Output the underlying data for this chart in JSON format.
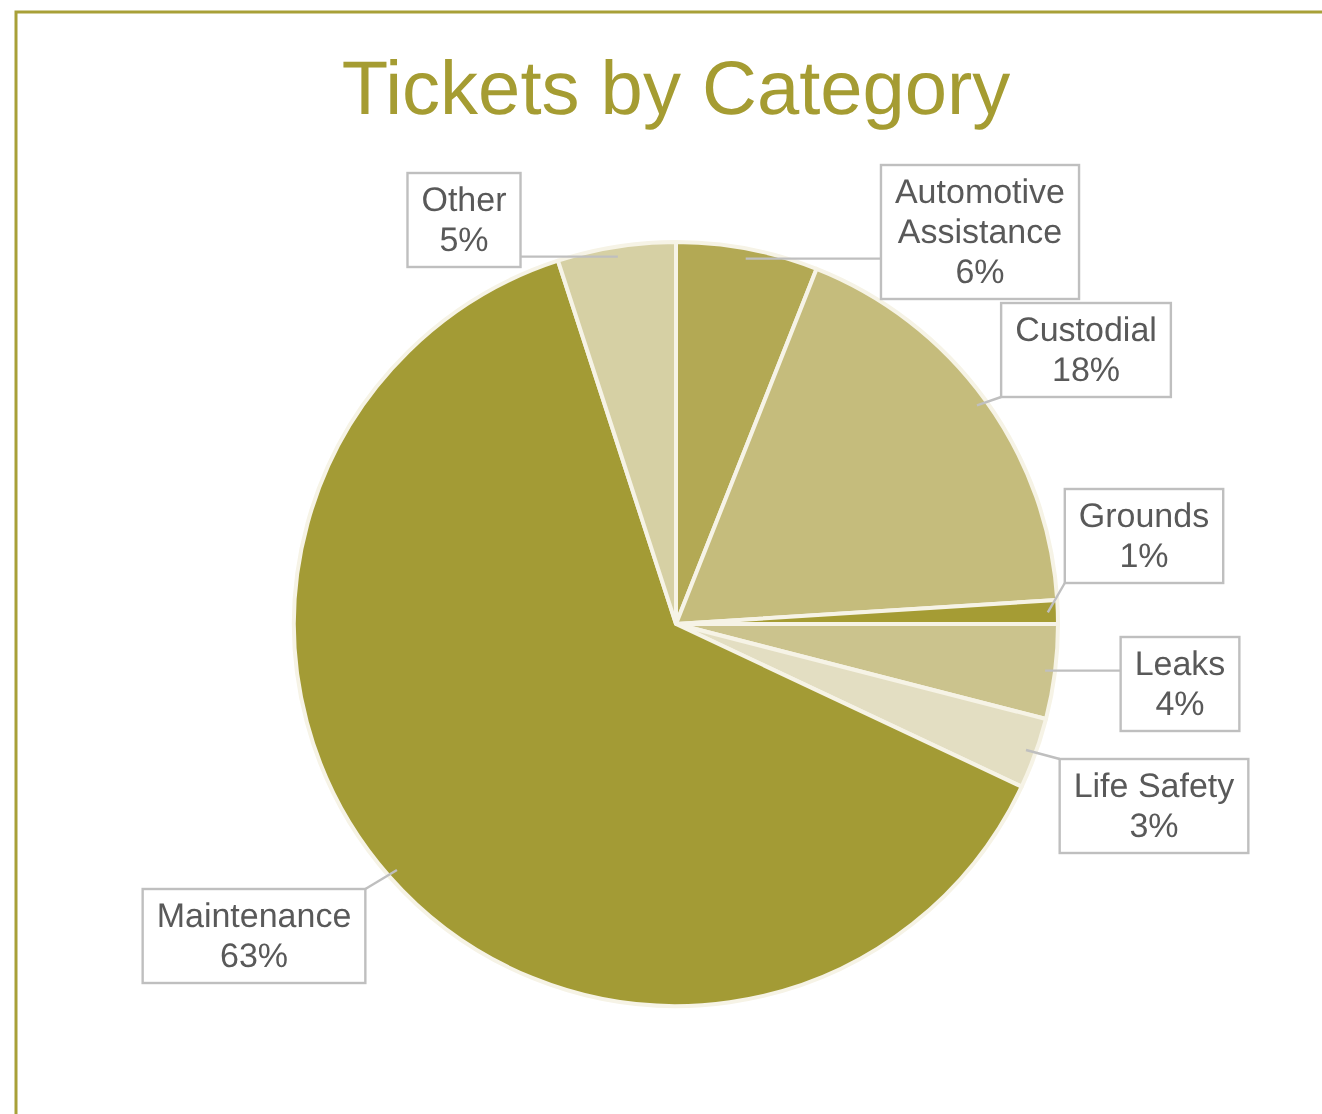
{
  "chart_data": {
    "type": "pie",
    "title": "Tickets by Category",
    "categories": [
      "Automotive Assistance",
      "Custodial",
      "Grounds",
      "Leaks",
      "Life Safety",
      "Maintenance",
      "Other"
    ],
    "values": [
      6,
      18,
      1,
      4,
      3,
      63,
      5
    ],
    "value_labels": [
      "6%",
      "18%",
      "1%",
      "4%",
      "3%",
      "63%",
      "5%"
    ],
    "colors": [
      "#b3a954",
      "#c5bc7c",
      "#a59c34",
      "#cbc38d",
      "#e3dec2",
      "#a39b35",
      "#d6d0a4"
    ],
    "legend": false
  }
}
